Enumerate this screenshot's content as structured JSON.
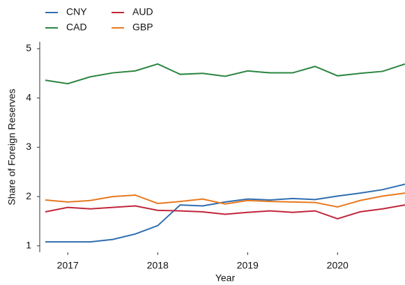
{
  "chart_data": {
    "type": "line",
    "x": [
      2016.75,
      2017,
      2017.25,
      2017.5,
      2017.75,
      2018,
      2018.25,
      2018.5,
      2018.75,
      2019,
      2019.25,
      2019.5,
      2019.75,
      2020,
      2020.25,
      2020.5,
      2020.75
    ],
    "series": [
      {
        "name": "CNY",
        "color": "#2f6db0",
        "values": [
          1.08,
          1.08,
          1.08,
          1.13,
          1.24,
          1.41,
          1.83,
          1.81,
          1.89,
          1.95,
          1.93,
          1.96,
          1.94,
          2.01,
          2.07,
          2.14,
          2.25
        ]
      },
      {
        "name": "CAD",
        "color": "#2a8540",
        "values": [
          4.36,
          4.29,
          4.43,
          4.51,
          4.55,
          4.69,
          4.48,
          4.5,
          4.44,
          4.55,
          4.51,
          4.51,
          4.64,
          4.45,
          4.5,
          4.54,
          4.69
        ]
      },
      {
        "name": "AUD",
        "color": "#c0263a",
        "values": [
          1.69,
          1.78,
          1.75,
          1.78,
          1.81,
          1.72,
          1.71,
          1.69,
          1.64,
          1.68,
          1.71,
          1.68,
          1.71,
          1.55,
          1.69,
          1.75,
          1.83
        ]
      },
      {
        "name": "GBP",
        "color": "#e8781e",
        "values": [
          1.93,
          1.89,
          1.92,
          2.0,
          2.03,
          1.86,
          1.9,
          1.95,
          1.85,
          1.92,
          1.9,
          1.89,
          1.88,
          1.79,
          1.92,
          2.01,
          2.07
        ]
      }
    ],
    "xlabel": "Year",
    "ylabel": "Share of Foreign Reserves",
    "xlim": [
      2016.688,
      2020.75
    ],
    "xticks": [
      2017,
      2018,
      2019,
      2020
    ],
    "ylim": [
      0.87,
      5.14
    ],
    "yticks": [
      1,
      2,
      3,
      4,
      5
    ],
    "legend": "top-left"
  }
}
